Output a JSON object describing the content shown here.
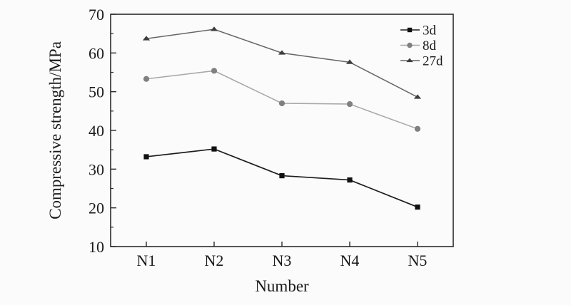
{
  "figure": {
    "background": "#fbfbfb"
  },
  "chart_data": {
    "type": "line",
    "title": "",
    "xlabel": "Number",
    "ylabel": "Compressive strength/MPa",
    "categories": [
      "N1",
      "N2",
      "N3",
      "N4",
      "N5"
    ],
    "ylim": [
      10,
      70
    ],
    "y_major_ticks": [
      10,
      20,
      30,
      40,
      50,
      60,
      70
    ],
    "y_minor_step": 5,
    "grid": false,
    "legend_position": "top-right-inside",
    "axis_color": "#2a2a2a",
    "text_color": "#1a1a1a",
    "series": [
      {
        "name": "3d",
        "marker": "square",
        "line_color": "#1c1c1c",
        "marker_color": "#111111",
        "values": [
          33.2,
          35.2,
          28.3,
          27.2,
          20.2
        ]
      },
      {
        "name": "8d",
        "marker": "circle",
        "line_color": "#a6a6a6",
        "marker_color": "#808080",
        "values": [
          53.3,
          55.4,
          47.0,
          46.8,
          40.4
        ]
      },
      {
        "name": "27d",
        "marker": "triangle",
        "line_color": "#666666",
        "marker_color": "#3d3d3d",
        "values": [
          63.7,
          66.1,
          60.0,
          57.6,
          48.6
        ]
      }
    ]
  }
}
